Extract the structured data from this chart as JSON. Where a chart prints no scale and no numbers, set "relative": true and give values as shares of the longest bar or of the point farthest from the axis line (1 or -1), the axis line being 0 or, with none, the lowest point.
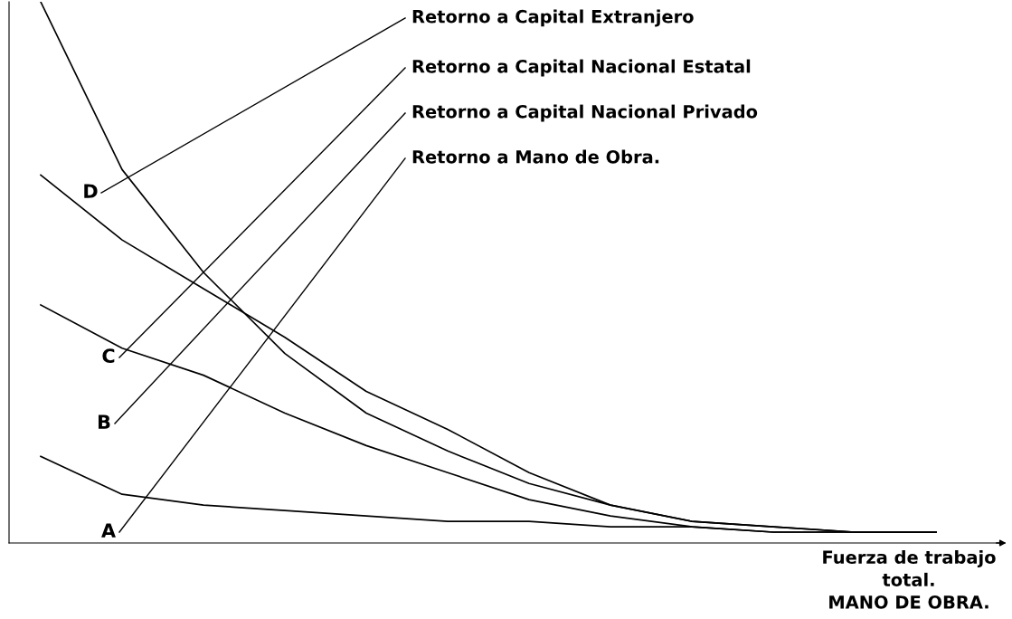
{
  "chart_data": {
    "type": "line",
    "relative": true,
    "xlabel": "Fuerza de trabajo\ntotal.\nMANO DE OBRA.",
    "legend": false,
    "grid": false,
    "marker": "none",
    "line_style": "solid",
    "categories": [
      null,
      null,
      null,
      null,
      null,
      null,
      null,
      null,
      null,
      null,
      null,
      null
    ],
    "series": [
      {
        "color": "#000000",
        "values": [
          1,
          0.69,
          0.5,
          0.35,
          0.24,
          0.17,
          0.11,
          0.07,
          0.04,
          0.03,
          0.02,
          0.02
        ]
      },
      {
        "color": "#000000",
        "values": [
          0.68,
          0.56,
          0.47,
          0.38,
          0.28,
          0.21,
          0.13,
          0.07,
          0.04,
          0.03,
          0.02,
          0.02
        ]
      },
      {
        "color": "#000000",
        "values": [
          0.44,
          0.36,
          0.31,
          0.24,
          0.18,
          0.13,
          0.08,
          0.05,
          0.03,
          0.02,
          0.02,
          0.02
        ]
      },
      {
        "color": "#000000",
        "values": [
          0.16,
          0.09,
          0.07,
          0.06,
          0.05,
          0.04,
          0.04,
          0.03,
          0.03,
          0.02,
          0.02,
          0.02
        ]
      }
    ],
    "annotations": [
      "D",
      "C",
      "B",
      "A",
      "Retorno a Capital Extranjero",
      "Retorno a Capital Nacional Estatal",
      "Retorno a Capital Nacional Privado",
      "Retorno a Mano de Obra."
    ]
  }
}
